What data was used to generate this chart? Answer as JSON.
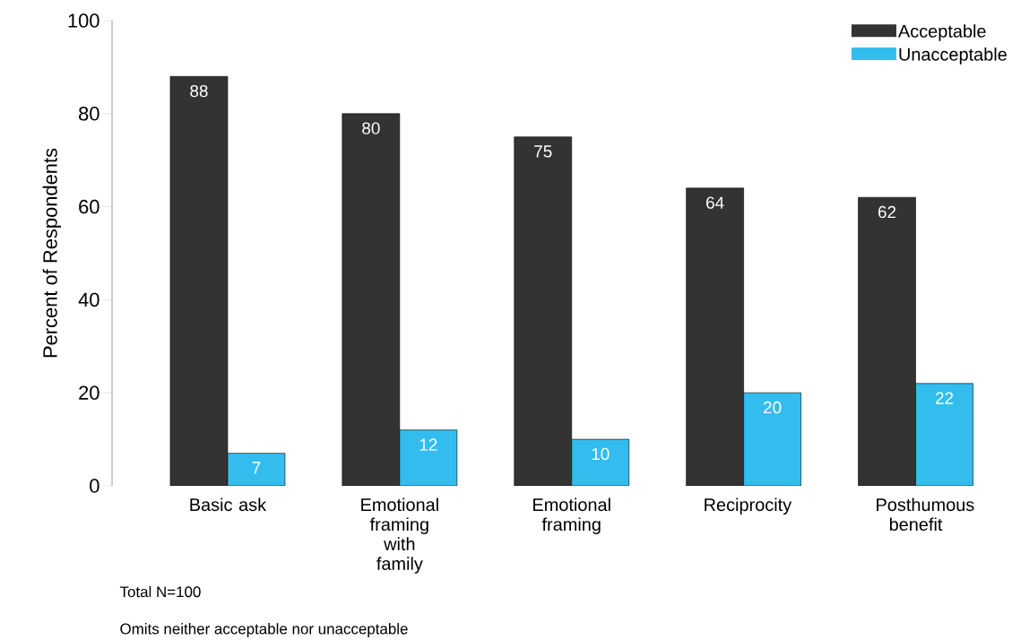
{
  "chart_data": {
    "type": "bar",
    "ylabel": "Percent of Respondents",
    "categories": [
      "Basic ask",
      "Emotional framing with family",
      "Emotional framing",
      "Reciprocity",
      "Posthumous benefit"
    ],
    "series": [
      {
        "name": "Acceptable",
        "color": "#333333",
        "values": [
          88,
          80,
          75,
          64,
          62
        ]
      },
      {
        "name": "Unacceptable",
        "color": "#33bdef",
        "values": [
          7,
          12,
          10,
          20,
          22
        ]
      }
    ],
    "ylim": [
      0,
      100
    ],
    "yticks": [
      0,
      20,
      40,
      60,
      80,
      100
    ],
    "data_labels": true,
    "legend": "top right",
    "grid": false,
    "annotations": [
      "Total N=100",
      "Omits neither acceptable nor unacceptable"
    ]
  }
}
